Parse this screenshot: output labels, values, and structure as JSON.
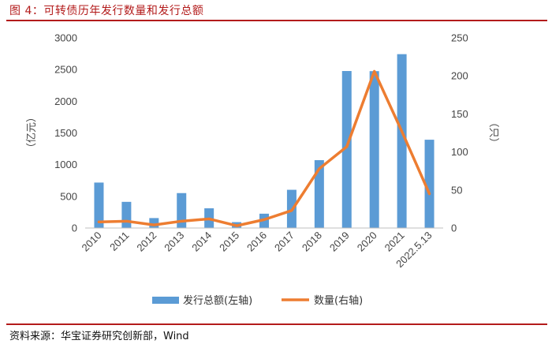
{
  "figure": {
    "title": "图 4：可转债历年发行数量和发行总额",
    "source": "资料来源：华宝证券研究创新部，Wind"
  },
  "chart_data": {
    "type": "bar",
    "categories": [
      "2010",
      "2011",
      "2012",
      "2013",
      "2014",
      "2015",
      "2016",
      "2017",
      "2018",
      "2019",
      "2020",
      "2021",
      "2022.5.13"
    ],
    "series": [
      {
        "name": "发行总额(左轴)",
        "type": "bar",
        "axis": "left",
        "color": "#5b9bd5",
        "values": [
          717,
          413,
          157,
          551,
          311,
          93,
          226,
          603,
          1071,
          2477,
          2475,
          2743,
          1393
        ]
      },
      {
        "name": "数量(右轴)",
        "type": "line",
        "axis": "right",
        "color": "#ed7d31",
        "values": [
          8,
          9,
          4,
          9,
          12,
          3,
          11,
          23,
          78,
          107,
          206,
          127,
          45
        ]
      }
    ],
    "left_axis": {
      "label": "（亿元）",
      "min": 0,
      "max": 3000,
      "ticks": [
        0,
        500,
        1000,
        1500,
        2000,
        2500,
        3000
      ]
    },
    "right_axis": {
      "label": "（只）",
      "min": 0,
      "max": 250,
      "ticks": [
        0,
        50,
        100,
        150,
        200,
        250
      ]
    },
    "grid": false,
    "legend_position": "bottom"
  }
}
